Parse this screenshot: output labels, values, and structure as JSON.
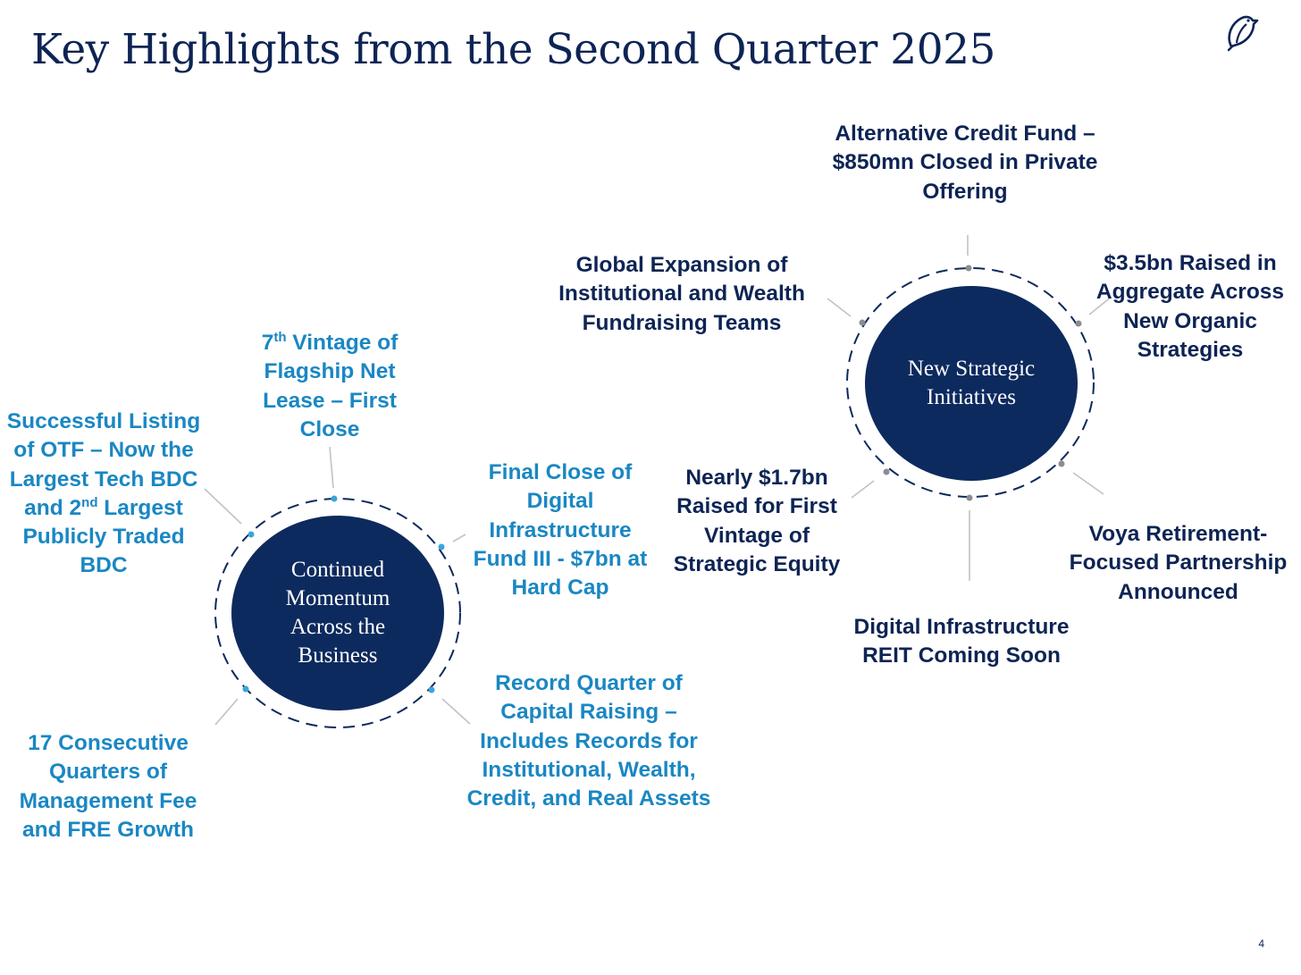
{
  "title": "Key Highlights from the Second Quarter 2025",
  "page_number": "4",
  "colors": {
    "navy": "#0d2a5e",
    "title_navy": "#0d2454",
    "accent_blue": "#1a87c3"
  },
  "logo_icon": "bird-icon",
  "left_hub": {
    "label": "Continued Momentum Across the Business",
    "items": {
      "otf": {
        "pre": "Successful Listing of OTF – Now the Largest Tech BDC and 2",
        "sup": "nd",
        "post": " Largest Publicly Traded BDC"
      },
      "net_lease": {
        "pre": "7",
        "sup": "th",
        "post": " Vintage of Flagship Net Lease – First Close"
      },
      "digital_infra_fund": "Final Close of Digital Infrastructure Fund III - $7bn at Hard Cap",
      "record_quarter": "Record Quarter of Capital Raising – Includes Records for Institutional, Wealth, Credit, and Real Assets",
      "fee_growth": "17 Consecutive Quarters of Management Fee and FRE Growth"
    }
  },
  "right_hub": {
    "label": "New Strategic Initiatives",
    "items": {
      "alt_credit": "Alternative Credit Fund – $850mn Closed in Private Offering",
      "raised_aggregate": "$3.5bn Raised in Aggregate Across New Organic Strategies",
      "voya": "Voya Retirement-Focused Partnership Announced",
      "digital_reit": "Digital Infrastructure REIT Coming Soon",
      "strategic_equity": "Nearly $1.7bn Raised for First Vintage of Strategic Equity",
      "global_expansion": "Global Expansion of Institutional and Wealth Fundraising Teams"
    }
  }
}
